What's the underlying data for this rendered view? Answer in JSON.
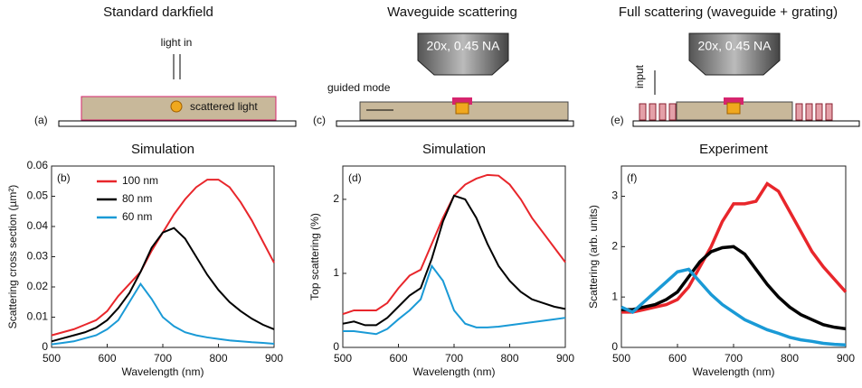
{
  "panels": [
    {
      "title": "Standard darkfield",
      "label": "(a)",
      "texts": [
        "light in",
        "scattered light"
      ]
    },
    {
      "title": "Waveguide scattering",
      "label": "(c)",
      "texts": [
        "20x, 0.45 NA",
        "guided mode"
      ]
    },
    {
      "title": "Full scattering (waveguide + grating)",
      "label": "(e)",
      "texts": [
        "20x, 0.45 NA",
        "input"
      ]
    }
  ],
  "chart_data": [
    {
      "type": "line",
      "title": "Simulation",
      "panel_label": "(b)",
      "xlabel": "Wavelength (nm)",
      "ylabel": "Scattering cross section (µm²)",
      "xlim": [
        500,
        900
      ],
      "xticks": [
        500,
        600,
        700,
        800,
        900
      ],
      "ylim": [
        0,
        0.06
      ],
      "yticks": [
        0,
        0.01,
        0.02,
        0.03,
        0.04,
        0.05,
        0.06
      ],
      "legend": "upper left",
      "x": [
        500,
        520,
        540,
        560,
        580,
        600,
        620,
        640,
        660,
        680,
        700,
        720,
        740,
        760,
        780,
        800,
        820,
        840,
        860,
        880,
        900
      ],
      "series": [
        {
          "name": "100 nm",
          "color": "#e8262b",
          "values": [
            0.004,
            0.005,
            0.006,
            0.0075,
            0.009,
            0.012,
            0.017,
            0.021,
            0.025,
            0.032,
            0.038,
            0.044,
            0.049,
            0.053,
            0.0555,
            0.0555,
            0.053,
            0.048,
            0.042,
            0.035,
            0.028
          ]
        },
        {
          "name": "80 nm",
          "color": "#000000",
          "values": [
            0.002,
            0.003,
            0.004,
            0.005,
            0.0065,
            0.009,
            0.013,
            0.018,
            0.025,
            0.033,
            0.038,
            0.0395,
            0.036,
            0.03,
            0.024,
            0.019,
            0.015,
            0.012,
            0.0095,
            0.0075,
            0.006
          ]
        },
        {
          "name": "60 nm",
          "color": "#1a9ad6",
          "values": [
            0.001,
            0.0015,
            0.002,
            0.003,
            0.004,
            0.006,
            0.009,
            0.015,
            0.021,
            0.016,
            0.01,
            0.007,
            0.005,
            0.004,
            0.0033,
            0.0028,
            0.0023,
            0.002,
            0.0017,
            0.0015,
            0.0012
          ]
        }
      ]
    },
    {
      "type": "line",
      "title": "Simulation",
      "panel_label": "(d)",
      "xlabel": "Wavelength (nm)",
      "ylabel": "Top scattering (%)",
      "xlim": [
        500,
        900
      ],
      "xticks": [
        500,
        600,
        700,
        800,
        900
      ],
      "ylim": [
        0,
        2.45
      ],
      "yticks": [
        0,
        1,
        2
      ],
      "x": [
        500,
        520,
        540,
        560,
        580,
        600,
        620,
        640,
        660,
        680,
        700,
        720,
        740,
        760,
        780,
        800,
        820,
        840,
        860,
        880,
        900
      ],
      "series": [
        {
          "color": "#e8262b",
          "values": [
            0.45,
            0.5,
            0.5,
            0.5,
            0.6,
            0.8,
            0.97,
            1.05,
            1.4,
            1.75,
            2.05,
            2.2,
            2.28,
            2.33,
            2.32,
            2.2,
            2.0,
            1.75,
            1.55,
            1.35,
            1.15
          ]
        },
        {
          "color": "#000000",
          "values": [
            0.32,
            0.35,
            0.3,
            0.3,
            0.4,
            0.55,
            0.7,
            0.8,
            1.2,
            1.7,
            2.05,
            2.0,
            1.75,
            1.4,
            1.1,
            0.9,
            0.75,
            0.65,
            0.6,
            0.55,
            0.52
          ]
        },
        {
          "color": "#1a9ad6",
          "values": [
            0.22,
            0.22,
            0.2,
            0.18,
            0.25,
            0.38,
            0.5,
            0.65,
            1.1,
            0.9,
            0.5,
            0.32,
            0.27,
            0.27,
            0.28,
            0.3,
            0.32,
            0.34,
            0.36,
            0.38,
            0.4
          ]
        }
      ]
    },
    {
      "type": "line",
      "title": "Experiment",
      "panel_label": "(f)",
      "xlabel": "Wavelength (nm)",
      "ylabel": "Scattering (arb. units)",
      "xlim": [
        500,
        900
      ],
      "xticks": [
        500,
        600,
        700,
        800,
        900
      ],
      "ylim": [
        0,
        3.6
      ],
      "yticks": [
        0,
        1,
        2,
        3
      ],
      "x": [
        500,
        520,
        540,
        560,
        580,
        600,
        620,
        640,
        660,
        680,
        700,
        720,
        740,
        760,
        780,
        800,
        820,
        840,
        860,
        880,
        900
      ],
      "series": [
        {
          "color": "#e8262b",
          "values": [
            0.7,
            0.7,
            0.75,
            0.8,
            0.85,
            0.95,
            1.2,
            1.6,
            2.0,
            2.5,
            2.85,
            2.85,
            2.9,
            3.25,
            3.1,
            2.7,
            2.3,
            1.9,
            1.6,
            1.35,
            1.1
          ]
        },
        {
          "color": "#000000",
          "values": [
            0.75,
            0.75,
            0.8,
            0.85,
            0.95,
            1.1,
            1.4,
            1.7,
            1.9,
            1.98,
            2.0,
            1.85,
            1.55,
            1.25,
            1.0,
            0.8,
            0.65,
            0.55,
            0.45,
            0.4,
            0.37
          ]
        },
        {
          "color": "#1a9ad6",
          "values": [
            0.8,
            0.7,
            0.9,
            1.1,
            1.3,
            1.5,
            1.55,
            1.3,
            1.05,
            0.85,
            0.7,
            0.55,
            0.45,
            0.35,
            0.28,
            0.2,
            0.15,
            0.12,
            0.08,
            0.06,
            0.05
          ]
        }
      ]
    }
  ]
}
